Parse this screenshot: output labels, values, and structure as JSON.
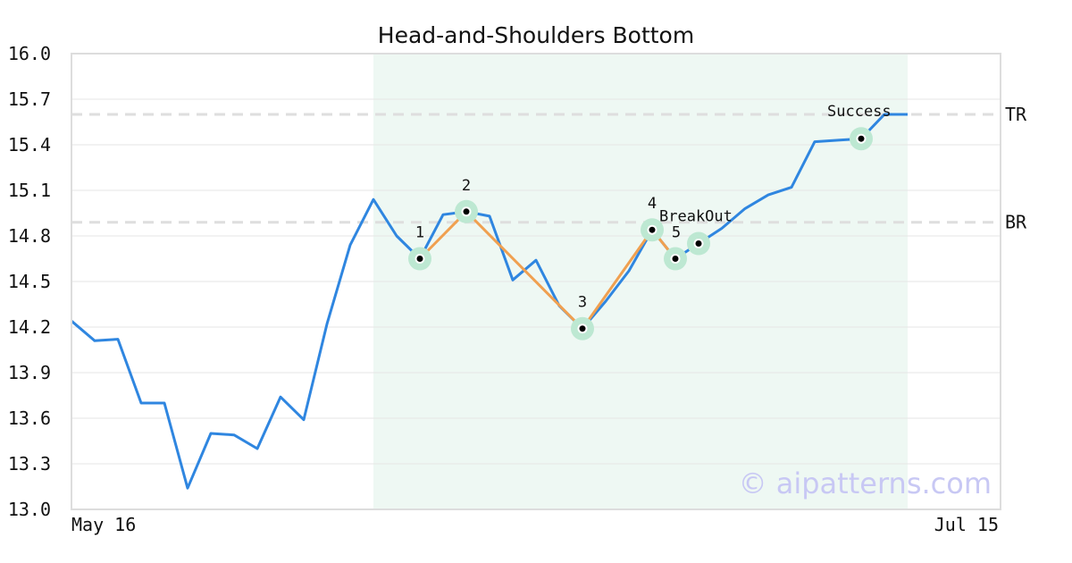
{
  "chart_data": {
    "type": "line",
    "title": "Head-and-Shoulders Bottom",
    "xlabel": "",
    "ylabel": "",
    "ylim": [
      13.0,
      16.0
    ],
    "yticks": [
      "13.0",
      "13.3",
      "13.6",
      "13.9",
      "14.2",
      "14.5",
      "14.8",
      "15.1",
      "15.4",
      "15.7",
      "16.0"
    ],
    "x_start_label": "May 16",
    "x_end_label": "Jul 15",
    "grid": true,
    "series": [
      {
        "color": "#2f86e0",
        "values": [
          14.24,
          14.11,
          14.12,
          13.7,
          13.7,
          13.14,
          13.5,
          13.49,
          13.4,
          13.74,
          13.59,
          14.22,
          14.74,
          15.04,
          14.8,
          14.65,
          14.94,
          14.96,
          14.93,
          14.51,
          14.64,
          14.34,
          14.19,
          14.37,
          14.57,
          14.84,
          14.65,
          14.75,
          14.85,
          14.98,
          15.07,
          15.12,
          15.42,
          15.43,
          15.44,
          15.6,
          15.6
        ]
      }
    ],
    "pattern": {
      "color": "#f0a050",
      "highlight_start_index": 13,
      "highlight_end_index": 36,
      "points": [
        {
          "label": "1",
          "index": 15,
          "value": 14.65
        },
        {
          "label": "2",
          "index": 17,
          "value": 14.96
        },
        {
          "label": "3",
          "index": 22,
          "value": 14.19
        },
        {
          "label": "4",
          "index": 25,
          "value": 14.84
        },
        {
          "label": "5",
          "index": 26,
          "value": 14.65
        }
      ],
      "markers": [
        {
          "label": "BreakOut",
          "index": 27,
          "value": 14.75
        },
        {
          "label": "Success",
          "index": 34,
          "value": 15.44
        }
      ]
    },
    "levels": [
      {
        "label": "TR",
        "value": 15.6
      },
      {
        "label": "BR",
        "value": 14.89
      }
    ],
    "watermark": "© aipatterns.com"
  }
}
